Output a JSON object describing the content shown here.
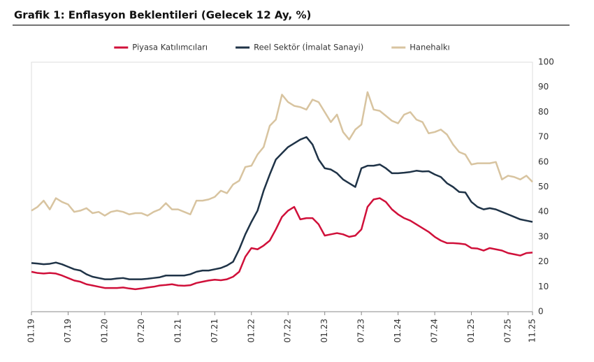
{
  "chart_data": {
    "type": "line",
    "title": "Grafik 1: Enflasyon Beklentileri (Gelecek 12 Ay, %)",
    "categories": [
      "01.19",
      null,
      null,
      null,
      null,
      null,
      "07.19",
      null,
      null,
      null,
      null,
      null,
      "01.20",
      null,
      null,
      null,
      null,
      null,
      "07.20",
      null,
      null,
      null,
      null,
      null,
      "01.21",
      null,
      null,
      null,
      null,
      null,
      "07.21",
      null,
      null,
      null,
      null,
      null,
      "01.22",
      null,
      null,
      null,
      null,
      null,
      "07.22",
      null,
      null,
      null,
      null,
      null,
      "01.23",
      null,
      null,
      null,
      null,
      null,
      "07.23",
      null,
      null,
      null,
      null,
      null,
      "01.24",
      null,
      null,
      null,
      null,
      null,
      "07.24",
      null,
      null,
      null,
      null,
      null,
      "01.25",
      null,
      null,
      null,
      null,
      null,
      "07.25",
      null,
      null,
      null,
      "11.25"
    ],
    "series": [
      {
        "name": "Piyasa Katılımcıları",
        "color": "#d0103a",
        "values": [
          16,
          15.5,
          15.3,
          15.5,
          15.3,
          14.5,
          13.5,
          12.5,
          12,
          11,
          10.5,
          10,
          9.5,
          9.5,
          9.5,
          9.7,
          9.3,
          9,
          9.3,
          9.7,
          10,
          10.5,
          10.7,
          11,
          10.5,
          10.4,
          10.6,
          11.5,
          12,
          12.5,
          12.8,
          12.6,
          13,
          14,
          16,
          22,
          25.5,
          25,
          26.5,
          28.5,
          33,
          38,
          40.5,
          42,
          37,
          37.5,
          37.5,
          35,
          30.5,
          31,
          31.5,
          31,
          30,
          30.5,
          33,
          42,
          45,
          45.5,
          44,
          41,
          39,
          37.5,
          36.5,
          35,
          33.5,
          32,
          30,
          28.5,
          27.5,
          27.5,
          27.3,
          27,
          25.5,
          25.3,
          24.5,
          25.5,
          25,
          24.5,
          23.5,
          23,
          22.5,
          23.5,
          23.7
        ]
      },
      {
        "name": "Reel Sektör (İmalat Sanayi)",
        "color": "#1f3347",
        "values": [
          19.5,
          19.3,
          19,
          19.2,
          19.7,
          19,
          18,
          17,
          16.5,
          15,
          14,
          13.5,
          13,
          13,
          13.3,
          13.5,
          13,
          13,
          13,
          13.2,
          13.5,
          13.8,
          14.5,
          14.5,
          14.5,
          14.5,
          15,
          16,
          16.5,
          16.5,
          17,
          17.5,
          18.5,
          20,
          25,
          31,
          36,
          40.5,
          48.5,
          55,
          61,
          63.5,
          66,
          67.5,
          69,
          70,
          67,
          61,
          57.5,
          57,
          55.5,
          53,
          51.5,
          50,
          57.5,
          58.5,
          58.5,
          59,
          57.5,
          55.5,
          55.5,
          55.7,
          56,
          56.5,
          56.2,
          56.3,
          55,
          54,
          51.5,
          50,
          48,
          47.8,
          44,
          42,
          41,
          41.5,
          41,
          40,
          39,
          38,
          37,
          36.5,
          36
        ]
      },
      {
        "name": "Hanehalkı",
        "color": "#d8c4a0",
        "values": [
          40.5,
          42,
          44.5,
          41,
          45.5,
          44,
          43,
          40,
          40.5,
          41.5,
          39.5,
          40,
          38.5,
          40,
          40.5,
          40,
          39,
          39.5,
          39.5,
          38.5,
          40,
          41,
          43.5,
          41,
          41,
          40,
          39,
          44.5,
          44.5,
          45,
          46,
          48.5,
          47.5,
          51,
          52.5,
          58,
          58.5,
          63,
          66,
          74.5,
          77,
          87,
          84,
          82.5,
          82,
          81,
          85,
          84,
          80,
          76,
          79,
          72,
          69,
          73,
          75,
          88,
          81,
          80.5,
          78.5,
          76.5,
          75.5,
          79,
          80,
          77,
          76,
          71.5,
          72,
          73,
          71,
          67,
          64,
          63,
          59,
          59.5,
          59.5,
          59.5,
          60,
          53,
          54.5,
          54,
          53,
          54.5,
          52
        ]
      }
    ],
    "ylim": [
      0,
      100
    ],
    "yticks": [
      0,
      10,
      20,
      30,
      40,
      50,
      60,
      70,
      80,
      90,
      100
    ],
    "legend": "top",
    "grid": false
  }
}
